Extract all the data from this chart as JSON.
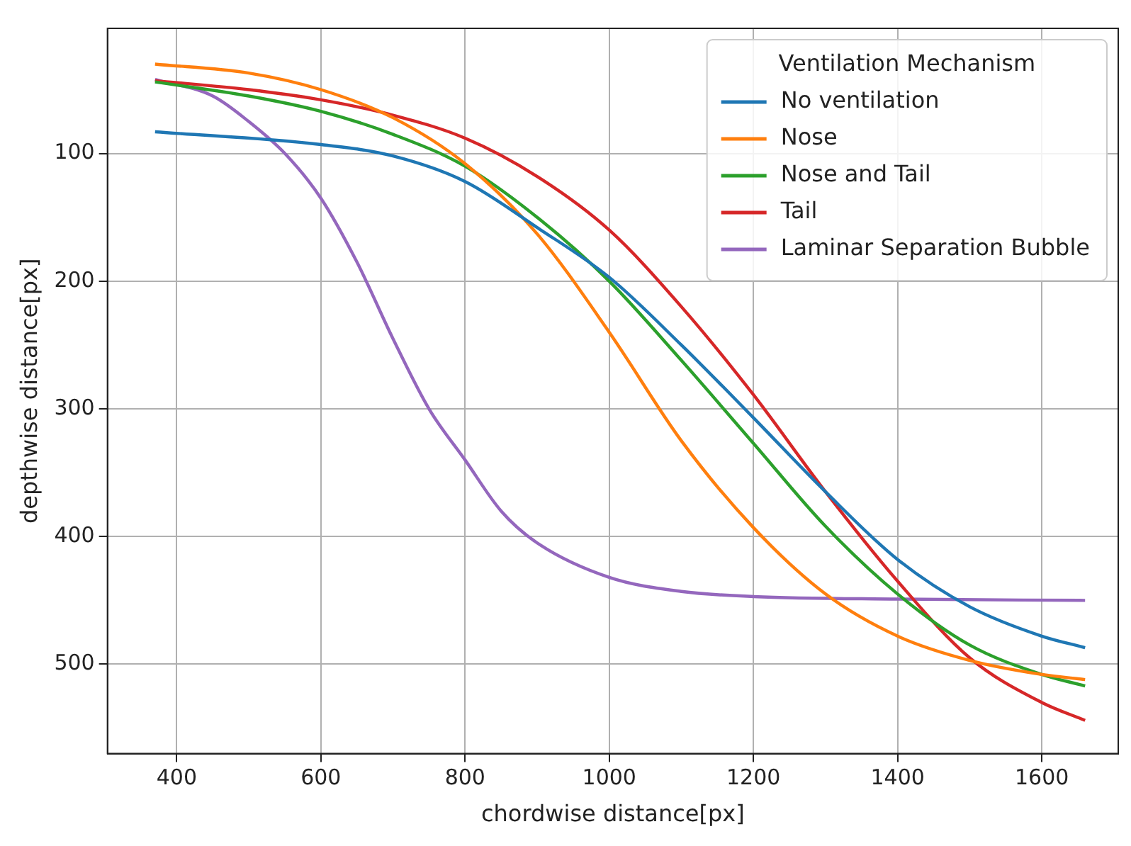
{
  "chart_data": {
    "type": "line",
    "xlabel": "chordwise distance[px]",
    "ylabel": "depthwise distance[px]",
    "legend_title": "Ventilation Mechanism",
    "legend": "top right",
    "grid": true,
    "xlim": [
      304,
      1706
    ],
    "xticks": [
      400,
      600,
      800,
      1000,
      1200,
      1400,
      1600
    ],
    "ylim": [
      570,
      2
    ],
    "yticks": [
      100,
      200,
      300,
      400,
      500
    ],
    "series": [
      {
        "name": "No ventilation",
        "color": "#1f77b4",
        "x": [
          370,
          600,
          700,
          800,
          900,
          1000,
          1100,
          1200,
          1300,
          1400,
          1500,
          1600,
          1660
        ],
        "values": [
          83,
          93,
          102,
          122,
          158,
          197,
          250,
          307,
          365,
          418,
          455,
          478,
          487
        ]
      },
      {
        "name": "Nose",
        "color": "#ff7f0e",
        "x": [
          370,
          500,
          600,
          700,
          800,
          900,
          1000,
          1100,
          1200,
          1300,
          1400,
          1500,
          1600,
          1660
        ],
        "values": [
          30,
          37,
          50,
          72,
          108,
          163,
          240,
          325,
          393,
          445,
          478,
          497,
          508,
          512
        ]
      },
      {
        "name": "Nose and Tail",
        "color": "#2ca02c",
        "x": [
          370,
          500,
          600,
          700,
          800,
          900,
          1000,
          1100,
          1200,
          1300,
          1400,
          1500,
          1600,
          1660
        ],
        "values": [
          44,
          55,
          67,
          85,
          110,
          150,
          200,
          262,
          327,
          392,
          445,
          485,
          508,
          517
        ]
      },
      {
        "name": "Tail",
        "color": "#d62728",
        "x": [
          370,
          500,
          600,
          700,
          800,
          900,
          1000,
          1100,
          1200,
          1300,
          1400,
          1500,
          1600,
          1660
        ],
        "values": [
          43,
          50,
          58,
          70,
          88,
          118,
          160,
          220,
          289,
          365,
          435,
          495,
          530,
          544
        ]
      },
      {
        "name": "Laminar Separation Bubble",
        "color": "#9467bd",
        "x": [
          370,
          450,
          500,
          550,
          600,
          650,
          700,
          750,
          800,
          850,
          900,
          1000,
          1100,
          1200,
          1400,
          1660
        ],
        "values": [
          42,
          55,
          75,
          100,
          135,
          185,
          245,
          300,
          340,
          380,
          405,
          432,
          443,
          447,
          449,
          450
        ]
      }
    ]
  }
}
